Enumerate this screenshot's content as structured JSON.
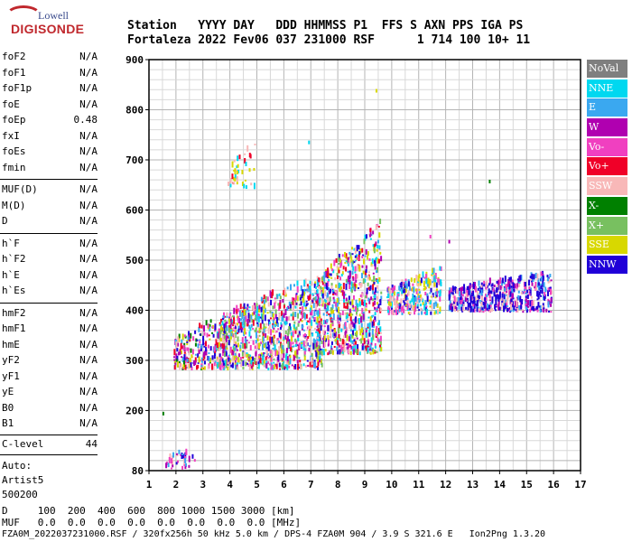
{
  "logo": {
    "top": "Lowell",
    "bottom": "DIGISONDE"
  },
  "header": {
    "row1": "Station   YYYY DAY   DDD HHMMSS P1  FFS S AXN PPS IGA PS",
    "row2": "Fortaleza 2022 Fev06 037 231000 RSF      1 714 100 10+ 11"
  },
  "params": [
    {
      "name": "foF2",
      "value": "N/A"
    },
    {
      "name": "foF1",
      "value": "N/A"
    },
    {
      "name": "foF1p",
      "value": "N/A"
    },
    {
      "name": "foE",
      "value": "N/A"
    },
    {
      "name": "foEp",
      "value": "0.48"
    },
    {
      "name": "fxI",
      "value": "N/A"
    },
    {
      "name": "foEs",
      "value": "N/A"
    },
    {
      "name": "fmin",
      "value": "N/A"
    },
    {
      "name": "MUF(D)",
      "value": "N/A"
    },
    {
      "name": "M(D)",
      "value": "N/A"
    },
    {
      "name": "D",
      "value": "N/A"
    },
    {
      "name": "h`F",
      "value": "N/A"
    },
    {
      "name": "h`F2",
      "value": "N/A"
    },
    {
      "name": "h`E",
      "value": "N/A"
    },
    {
      "name": "h`Es",
      "value": "N/A"
    },
    {
      "name": "hmF2",
      "value": "N/A"
    },
    {
      "name": "hmF1",
      "value": "N/A"
    },
    {
      "name": "hmE",
      "value": "N/A"
    },
    {
      "name": "yF2",
      "value": "N/A"
    },
    {
      "name": "yF1",
      "value": "N/A"
    },
    {
      "name": "yE",
      "value": "N/A"
    },
    {
      "name": "B0",
      "value": "N/A"
    },
    {
      "name": "B1",
      "value": "N/A"
    }
  ],
  "clevel": {
    "name": "C-level",
    "value": "44"
  },
  "auto": {
    "line1": "Auto:",
    "line2": "Artist5",
    "line3": "500200"
  },
  "legend": [
    {
      "label": "NoVal",
      "color": "#7f7f7f"
    },
    {
      "label": "NNE",
      "color": "#00d8f0"
    },
    {
      "label": "E",
      "color": "#3aa8f0"
    },
    {
      "label": "W",
      "color": "#b000b0"
    },
    {
      "label": "Vo-",
      "color": "#f040c0"
    },
    {
      "label": "Vo+",
      "color": "#f00028"
    },
    {
      "label": "SSW",
      "color": "#f8b8b8"
    },
    {
      "label": "X-",
      "color": "#008000"
    },
    {
      "label": "X+",
      "color": "#78c060"
    },
    {
      "label": "SSE",
      "color": "#d8d800"
    },
    {
      "label": "NNW",
      "color": "#2000d8"
    }
  ],
  "footer": {
    "d_row": "D     100  200  400  600  800 1000 1500 3000 [km]",
    "muf_row": "MUF   0.0  0.0  0.0  0.0  0.0  0.0  0.0  0.0 [MHz]",
    "file_row": "FZA0M_2022037231000.RSF / 320fx256h 50 kHz 5.0 km / DPS-4 FZA0M 904 / 3.9 S 321.6 E   Ion2Png 1.3.20"
  },
  "chart_data": {
    "type": "scatter",
    "x_axis": {
      "range": [
        1,
        17
      ],
      "ticks": [
        "1",
        "2",
        "3",
        "4",
        "5",
        "6",
        "7",
        "8",
        "9",
        "10",
        "11",
        "12",
        "13",
        "14",
        "15",
        "16",
        "17"
      ],
      "unit": "MHz"
    },
    "y_axis": {
      "range": [
        80,
        900
      ],
      "ticks": [
        "80",
        "200",
        "300",
        "400",
        "500",
        "600",
        "700",
        "800",
        "900"
      ],
      "unit": "km"
    },
    "grid": true,
    "clusters": [
      {
        "x": [
          1.5,
          2.7
        ],
        "y": [
          80,
          125
        ],
        "count": 35,
        "colors": [
          "NNW",
          "E",
          "W",
          "Vo-",
          "SSW"
        ]
      },
      {
        "x": [
          1.9,
          3.8
        ],
        "y": [
          280,
          390
        ],
        "count": 220,
        "colors": [
          "E",
          "SSW",
          "SSE",
          "W",
          "Vo-",
          "NNW",
          "X-",
          "Vo+"
        ]
      },
      {
        "x": [
          3.5,
          7.4
        ],
        "y": [
          280,
          470
        ],
        "count": 900,
        "colors": [
          "E",
          "SSE",
          "SSW",
          "W",
          "Vo-",
          "NNW",
          "NNE",
          "Vo+",
          "X+"
        ]
      },
      {
        "x": [
          7.2,
          9.6
        ],
        "y": [
          310,
          580
        ],
        "count": 700,
        "colors": [
          "SSE",
          "E",
          "NNE",
          "W",
          "SSW",
          "Vo-",
          "NNW",
          "Vo+",
          "X+"
        ]
      },
      {
        "x": [
          9.8,
          11.8
        ],
        "y": [
          390,
          480
        ],
        "count": 280,
        "colors": [
          "SSW",
          "SSE",
          "NNE",
          "E",
          "NNW",
          "Vo-"
        ]
      },
      {
        "x": [
          12.1,
          15.9
        ],
        "y": [
          395,
          475
        ],
        "count": 520,
        "colors": [
          "NNW",
          "NNW",
          "NNW",
          "E",
          "W",
          "Vo-",
          "SSW"
        ]
      },
      {
        "x": [
          3.9,
          4.9
        ],
        "y": [
          640,
          730
        ],
        "count": 40,
        "colors": [
          "SSE",
          "Vo+",
          "NNE",
          "SSW"
        ]
      }
    ],
    "isolated_points": [
      {
        "x": 1.5,
        "y": 192,
        "color": "X-"
      },
      {
        "x": 9.4,
        "y": 836,
        "color": "SSE"
      },
      {
        "x": 13.6,
        "y": 655,
        "color": "X-"
      },
      {
        "x": 6.9,
        "y": 733,
        "color": "NNE"
      },
      {
        "x": 12.1,
        "y": 535,
        "color": "W"
      },
      {
        "x": 11.4,
        "y": 545,
        "color": "Vo-"
      },
      {
        "x": 4.7,
        "y": 678,
        "color": "SSE"
      }
    ]
  }
}
